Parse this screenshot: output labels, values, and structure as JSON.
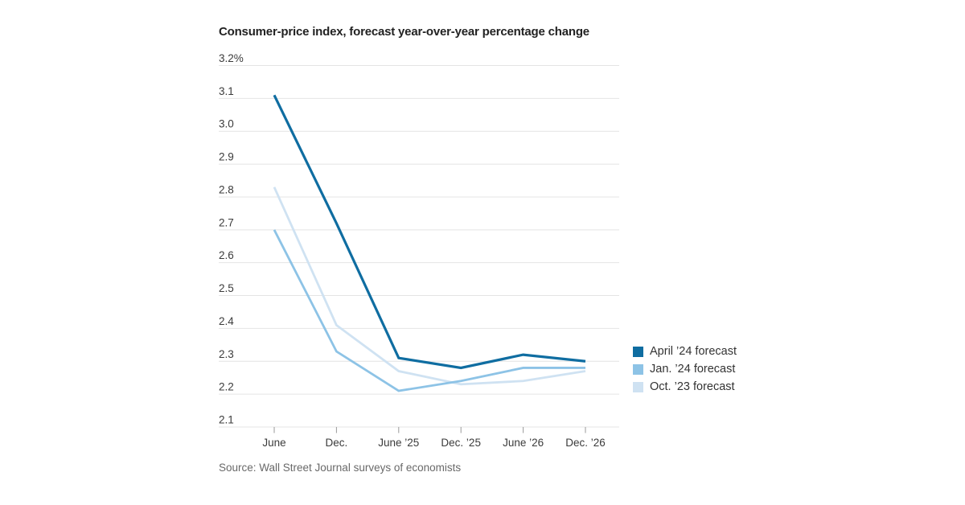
{
  "chart_data": {
    "type": "line",
    "title": "Consumer-price index, forecast year-over-year percentage change",
    "source": "Source: Wall Street Journal surveys of economists",
    "categories": [
      "June",
      "Dec.",
      "June ’25",
      "Dec. ’25",
      "June ’26",
      "Dec. ’26"
    ],
    "series": [
      {
        "name": "April ’24 forecast",
        "color": "#0f6da1",
        "values": [
          3.11,
          2.72,
          2.31,
          2.28,
          2.32,
          2.3
        ]
      },
      {
        "name": "Jan. ’24 forecast",
        "color": "#8dc3e6",
        "values": [
          2.7,
          2.33,
          2.21,
          2.24,
          2.28,
          2.28
        ]
      },
      {
        "name": "Oct. ’23 forecast",
        "color": "#cfe2f2",
        "values": [
          2.83,
          2.41,
          2.27,
          2.23,
          2.24,
          2.27
        ]
      }
    ],
    "y_tick_labels": [
      "3.2%",
      "3.1",
      "3.0",
      "2.9",
      "2.8",
      "2.7",
      "2.6",
      "2.5",
      "2.4",
      "2.3",
      "2.2",
      "2.1"
    ],
    "y_tick_values": [
      3.2,
      3.1,
      3.0,
      2.9,
      2.8,
      2.7,
      2.6,
      2.5,
      2.4,
      2.3,
      2.2,
      2.1
    ],
    "ylim": [
      2.1,
      3.2
    ],
    "xlabel": "",
    "ylabel": "",
    "grid": "horizontal",
    "legend_position": "right",
    "grid_color": "#e4e4e4",
    "tick_color": "#9a9a9a"
  }
}
